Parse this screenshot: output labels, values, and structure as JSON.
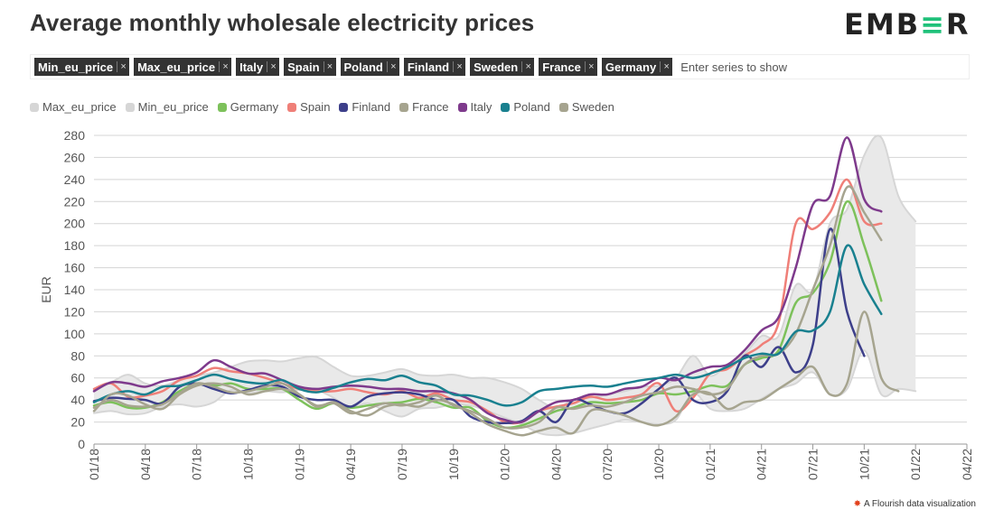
{
  "header": {
    "title": "Average monthly wholesale electricity prices",
    "logo_pre": "EMB",
    "logo_accent": "≡",
    "logo_post": "R"
  },
  "filter": {
    "chips": [
      "Min_eu_price",
      "Max_eu_price",
      "Italy",
      "Spain",
      "Poland",
      "Finland",
      "Sweden",
      "France",
      "Germany"
    ],
    "remove_symbol": "×",
    "placeholder": "Enter series to show"
  },
  "footer": {
    "text": "A Flourish data visualization"
  },
  "chart_data": {
    "type": "line",
    "ylabel": "EUR",
    "ylim": [
      0,
      280
    ],
    "yticks": [
      0,
      20,
      40,
      60,
      80,
      100,
      120,
      140,
      160,
      180,
      200,
      220,
      240,
      260,
      280
    ],
    "xticks": [
      "01/18",
      "04/18",
      "07/18",
      "10/18",
      "01/19",
      "04/19",
      "07/19",
      "10/19",
      "01/20",
      "04/20",
      "07/20",
      "10/20",
      "01/21",
      "04/21",
      "07/21",
      "10/21",
      "01/22",
      "04/22"
    ],
    "x_start": "01/18",
    "grid": "horizontal",
    "legend": "top-left",
    "band": {
      "upper": "Max_eu_price",
      "lower": "Min_eu_price",
      "fill": "#e9e9e9"
    },
    "series": [
      {
        "name": "Max_eu_price",
        "color": "#d6d6d6",
        "values": [
          50,
          56,
          63,
          55,
          53,
          58,
          62,
          65,
          70,
          75,
          76,
          75,
          78,
          79,
          70,
          62,
          62,
          65,
          68,
          63,
          62,
          63,
          60,
          60,
          56,
          50,
          40,
          33,
          40,
          42,
          45,
          48,
          52,
          53,
          60,
          80,
          62,
          72,
          82,
          98,
          98,
          144,
          140,
          200,
          213,
          262,
          278,
          225,
          202
        ]
      },
      {
        "name": "Min_eu_price",
        "color": "#d6d6d6",
        "values": [
          28,
          30,
          27,
          28,
          34,
          36,
          34,
          38,
          49,
          46,
          48,
          47,
          49,
          49,
          42,
          33,
          37,
          30,
          25,
          32,
          33,
          36,
          35,
          30,
          24,
          18,
          10,
          8,
          10,
          14,
          18,
          22,
          20,
          18,
          22,
          46,
          32,
          30,
          32,
          41,
          50,
          55,
          65,
          45,
          50,
          85,
          45,
          50,
          48
        ]
      },
      {
        "name": "Germany",
        "color": "#7dc15b",
        "values": [
          35,
          38,
          33,
          33,
          38,
          48,
          55,
          53,
          55,
          50,
          50,
          50,
          40,
          32,
          37,
          33,
          35,
          37,
          38,
          41,
          38,
          33,
          33,
          21,
          15,
          17,
          23,
          30,
          33,
          38,
          37,
          38,
          40,
          46,
          45,
          48,
          53,
          53,
          72,
          78,
          85,
          128,
          137,
          165,
          220,
          180,
          130
        ]
      },
      {
        "name": "Spain",
        "color": "#ef7f78",
        "values": [
          50,
          55,
          43,
          44,
          48,
          58,
          62,
          69,
          66,
          64,
          60,
          55,
          50,
          48,
          48,
          50,
          47,
          45,
          48,
          42,
          46,
          40,
          38,
          30,
          20,
          20,
          30,
          34,
          37,
          43,
          40,
          42,
          45,
          55,
          30,
          42,
          64,
          68,
          80,
          90,
          110,
          200,
          195,
          210,
          240,
          202,
          200
        ]
      },
      {
        "name": "Finland",
        "color": "#3d3f8a",
        "values": [
          39,
          42,
          41,
          40,
          37,
          52,
          55,
          50,
          46,
          49,
          53,
          52,
          43,
          40,
          40,
          34,
          43,
          46,
          47,
          45,
          40,
          40,
          25,
          20,
          19,
          21,
          30,
          20,
          40,
          36,
          30,
          28,
          37,
          50,
          60,
          40,
          38,
          48,
          80,
          70,
          88,
          65,
          90,
          195,
          120,
          80
        ]
      },
      {
        "name": "France",
        "color": "#a6a48f",
        "values": [
          33,
          40,
          35,
          34,
          36,
          46,
          55,
          52,
          47,
          48,
          52,
          55,
          45,
          35,
          37,
          28,
          32,
          37,
          35,
          38,
          44,
          35,
          30,
          23,
          15,
          15,
          20,
          33,
          32,
          35,
          34,
          38,
          44,
          47,
          52,
          50,
          45,
          50,
          72,
          80,
          82,
          100,
          140,
          180,
          233,
          210,
          185
        ]
      },
      {
        "name": "Italy",
        "color": "#7e3a8c",
        "values": [
          48,
          56,
          55,
          52,
          57,
          60,
          65,
          76,
          70,
          64,
          64,
          58,
          52,
          50,
          52,
          53,
          52,
          50,
          50,
          48,
          48,
          46,
          40,
          28,
          22,
          20,
          30,
          38,
          40,
          45,
          45,
          50,
          52,
          60,
          58,
          65,
          70,
          72,
          85,
          103,
          115,
          160,
          217,
          225,
          278,
          222,
          211
        ]
      },
      {
        "name": "Poland",
        "color": "#19808f",
        "values": [
          38,
          45,
          48,
          45,
          52,
          53,
          58,
          63,
          59,
          56,
          55,
          58,
          50,
          47,
          51,
          56,
          59,
          58,
          62,
          56,
          53,
          45,
          44,
          40,
          35,
          38,
          48,
          50,
          52,
          53,
          52,
          55,
          58,
          60,
          63,
          60,
          64,
          70,
          78,
          82,
          82,
          102,
          103,
          120,
          180,
          145,
          118
        ]
      },
      {
        "name": "Sweden",
        "color": "#a6a48f",
        "values": [
          30,
          45,
          44,
          36,
          32,
          45,
          53,
          55,
          52,
          45,
          48,
          50,
          45,
          34,
          38,
          30,
          26,
          34,
          36,
          34,
          40,
          36,
          28,
          18,
          12,
          8,
          12,
          15,
          10,
          30,
          30,
          26,
          20,
          17,
          25,
          45,
          46,
          32,
          38,
          40,
          50,
          60,
          70,
          45,
          55,
          120,
          60,
          48
        ]
      }
    ]
  }
}
